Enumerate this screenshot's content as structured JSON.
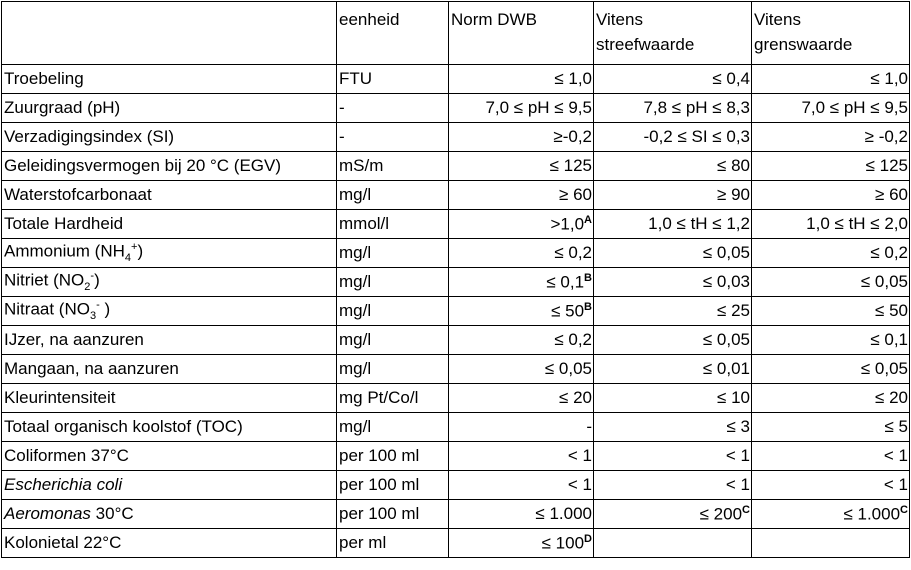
{
  "table": {
    "header": [
      null,
      "eenheid",
      "Norm DWB",
      "Vitens streefwaarde",
      "Vitens grenswaarde"
    ],
    "rows": [
      [
        "Troebeling",
        "FTU",
        "≤ 1,0",
        "≤ 0,4",
        "≤ 1,0"
      ],
      [
        "Zuurgraad (pH)",
        "-",
        "7,0 ≤ pH ≤ 9,5",
        "7,8 ≤ pH ≤ 8,3",
        "7,0 ≤ pH ≤ 9,5"
      ],
      [
        "Verzadigingsindex (SI)",
        "-",
        "≥-0,2",
        "-0,2 ≤ SI ≤ 0,3",
        "≥ -0,2"
      ],
      [
        "Geleidingsvermogen bij 20 °C (EGV)",
        "mS/m",
        "≤ 125",
        "≤ 80",
        "≤ 125"
      ],
      [
        "Waterstofcarbonaat",
        "mg/l",
        "≥ 60",
        "≥ 90",
        "≥ 60"
      ],
      [
        "Totale Hardheid",
        "mmol/l",
        [
          {
            "text": ">1,0"
          },
          {
            "text": "A",
            "style": "note"
          }
        ],
        "1,0 ≤ tH ≤ 1,2",
        "1,0 ≤ tH ≤ 2,0"
      ],
      [
        [
          {
            "text": "Ammonium (NH"
          },
          {
            "text": "4",
            "style": "sub"
          },
          {
            "text": "+",
            "style": "sup"
          },
          {
            "text": ")"
          }
        ],
        "mg/l",
        "≤ 0,2",
        "≤ 0,05",
        "≤ 0,2"
      ],
      [
        [
          {
            "text": "Nitriet (NO"
          },
          {
            "text": "2",
            "style": "sub"
          },
          {
            "text": "-",
            "style": "sup"
          },
          {
            "text": ")"
          }
        ],
        "mg/l",
        [
          {
            "text": "≤ 0,1"
          },
          {
            "text": "B",
            "style": "note"
          }
        ],
        "≤ 0,03",
        "≤ 0,05"
      ],
      [
        [
          {
            "text": "Nitraat (NO"
          },
          {
            "text": "3",
            "style": "sub"
          },
          {
            "text": "-",
            "style": "sup"
          },
          {
            "text": " )"
          }
        ],
        "mg/l",
        [
          {
            "text": "≤ 50"
          },
          {
            "text": "B",
            "style": "note"
          }
        ],
        "≤ 25",
        "≤ 50"
      ],
      [
        "IJzer, na aanzuren",
        "mg/l",
        "≤ 0,2",
        "≤ 0,05",
        "≤ 0,1"
      ],
      [
        "Mangaan, na aanzuren",
        "mg/l",
        "≤ 0,05",
        "≤ 0,01",
        "≤ 0,05"
      ],
      [
        "Kleurintensiteit",
        "mg Pt/Co/l",
        "≤ 20",
        "≤ 10",
        "≤ 20"
      ],
      [
        "Totaal organisch koolstof (TOC)",
        "mg/l",
        "-",
        "≤ 3",
        "≤ 5"
      ],
      [
        "Coliformen 37°C",
        "per 100 ml",
        "< 1",
        "< 1",
        "< 1"
      ],
      [
        [
          {
            "text": "Escherichia coli",
            "style": "italic"
          }
        ],
        "per 100 ml",
        "< 1",
        "< 1",
        "< 1"
      ],
      [
        [
          {
            "text": "Aeromonas",
            "style": "italic"
          },
          {
            "text": " 30°C"
          }
        ],
        "per 100 ml",
        "≤ 1.000",
        [
          {
            "text": "≤ 200"
          },
          {
            "text": "C",
            "style": "note"
          }
        ],
        [
          {
            "text": "≤ 1.000"
          },
          {
            "text": "C",
            "style": "note"
          }
        ]
      ],
      [
        "Kolonietal 22°C",
        "per ml",
        [
          {
            "text": "≤ 100"
          },
          {
            "text": "D",
            "style": "note"
          }
        ],
        null,
        null
      ]
    ]
  }
}
